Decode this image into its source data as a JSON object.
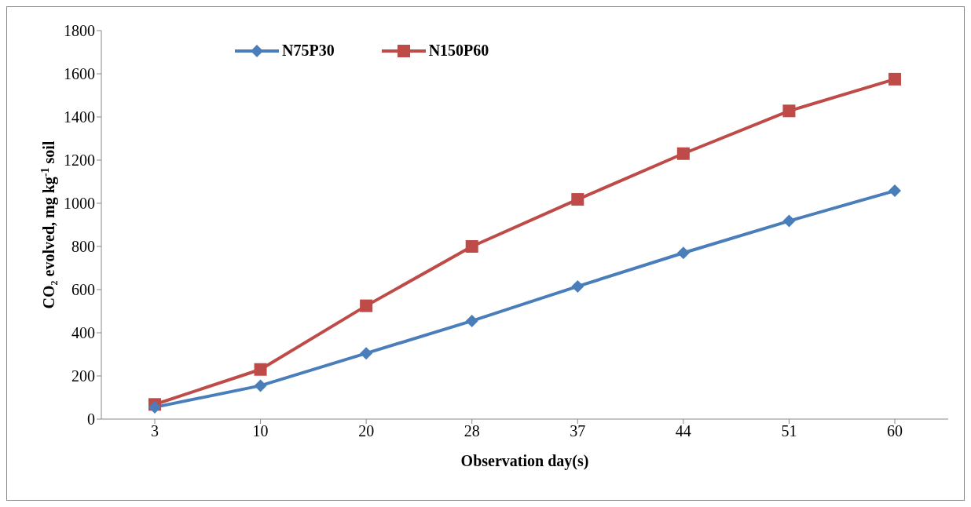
{
  "chart_data": {
    "type": "line",
    "xlabel": "Observation day(s)",
    "ylabel": "CO₂ evolved, mg kg$^{-1}$ soil",
    "categories": [
      "3",
      "10",
      "20",
      "28",
      "37",
      "44",
      "51",
      "60"
    ],
    "series": [
      {
        "name": "N75P30",
        "color": "#4a7ebb",
        "marker": "diamond",
        "values": [
          55,
          155,
          305,
          455,
          615,
          770,
          918,
          1058
        ]
      },
      {
        "name": "N150P60",
        "color": "#be4b48",
        "marker": "square",
        "values": [
          68,
          230,
          525,
          800,
          1018,
          1230,
          1428,
          1575
        ]
      }
    ],
    "ylim": [
      0,
      1800
    ],
    "yticks": [
      0,
      200,
      400,
      600,
      800,
      1000,
      1200,
      1400,
      1600,
      1800
    ],
    "grid": false,
    "legend": "top left",
    "line_style": "solid"
  }
}
